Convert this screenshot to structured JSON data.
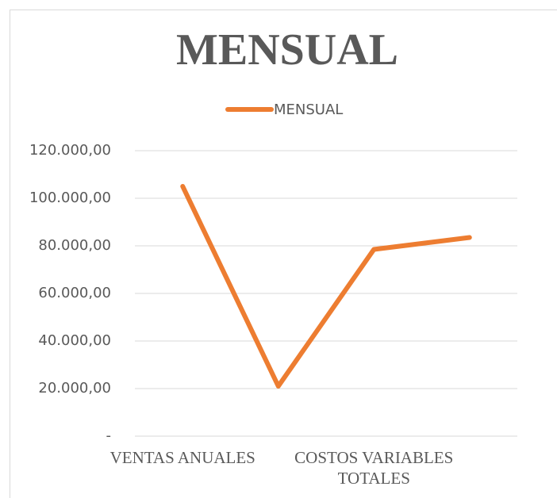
{
  "chart_data": {
    "type": "line",
    "title": "MENSUAL",
    "categories": [
      "VENTAS ANUALES",
      null,
      "COSTOS VARIABLES TOTALES",
      null
    ],
    "series": [
      {
        "name": "MENSUAL",
        "color": "#ED7D31",
        "values": [
          105000,
          21000,
          78500,
          83500
        ]
      }
    ],
    "ylim": [
      0,
      120000
    ],
    "yticks": [
      {
        "value": 0,
        "label": "-"
      },
      {
        "value": 20000,
        "label": "20.000,00"
      },
      {
        "value": 40000,
        "label": "40.000,00"
      },
      {
        "value": 60000,
        "label": "60.000,00"
      },
      {
        "value": 80000,
        "label": "80.000,00"
      },
      {
        "value": 100000,
        "label": "100.000,00"
      },
      {
        "value": 120000,
        "label": "120.000,00"
      }
    ],
    "grid": true,
    "legend": "top"
  }
}
